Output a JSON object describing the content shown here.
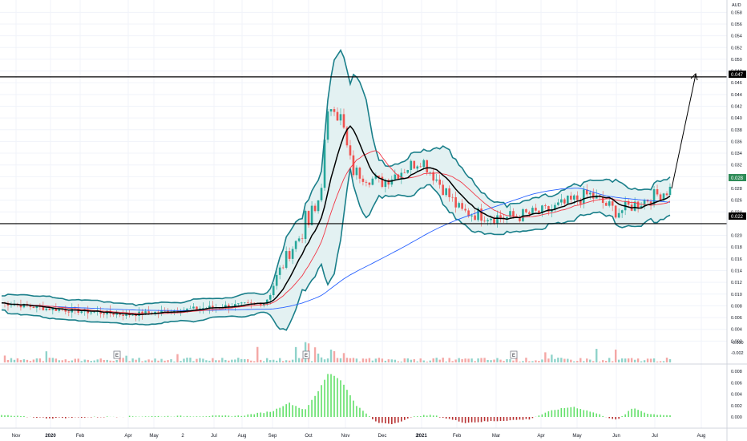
{
  "symbol": {
    "currency": "AUD"
  },
  "colors": {
    "up": "#26a69a",
    "down": "#ef5350",
    "upVol": "#8fd3ca",
    "downVol": "#f4a7a5",
    "bb": "#1a7f8a",
    "bbFill": "#e3f1f2",
    "ma": "#000000",
    "ema": "#f23645",
    "sma": "#2962ff",
    "histUp": "#63e06a",
    "histDown": "#b83232",
    "grid": "#f0f3fa",
    "axisText": "#131722",
    "boxBg": "#000000",
    "boxText": "#ffffff",
    "lastBox": "#2e8b57"
  },
  "price_axis": {
    "ticks": [
      "0.058",
      "0.056",
      "0.054",
      "0.052",
      "0.050",
      "0.048",
      "0.046",
      "0.044",
      "0.042",
      "0.040",
      "0.038",
      "0.036",
      "0.034",
      "0.032",
      "0.030",
      "0.028",
      "0.026",
      "0.024",
      "0.020",
      "0.018",
      "0.016",
      "0.014",
      "0.012",
      "0.010",
      "0.008",
      "0.006",
      "0.004",
      "0.002"
    ],
    "vol_ticks": [
      "-0.000",
      "-0.002"
    ],
    "osc_ticks": [
      "0.008",
      "0.006",
      "0.004",
      "0.002",
      "0.000"
    ]
  },
  "time_axis": {
    "labels": [
      "Nov",
      "2020",
      "Feb",
      "Apr",
      "May",
      "Jul",
      "Aug",
      "Sep",
      "Oct",
      "Nov",
      "Dec",
      "2021",
      "Feb",
      "Mar",
      "Apr",
      "May",
      "Jun",
      "Jul",
      "Aug"
    ],
    "extra_labels": [
      "2",
      "2"
    ]
  },
  "levels": [
    {
      "label": "0.047",
      "value": 0.047
    },
    {
      "label": "0.022",
      "value": 0.022
    }
  ],
  "last_price": {
    "label": "0.028",
    "value": 0.028
  },
  "earnings": [
    "E",
    "E",
    "E"
  ],
  "chart_data": {
    "type": "candlestick",
    "ylim": [
      0,
      0.059
    ],
    "oscillator_ylim": [
      -0.0016,
      0.0088
    ],
    "period": {
      "start": "2019-11",
      "end": "2021-08"
    },
    "resistance": 0.047,
    "support": 0.022,
    "projection": {
      "from": 0.028,
      "to": 0.047
    },
    "series": [
      {
        "name": "Close",
        "x": [
          "2019-11",
          "2020-01",
          "2020-04",
          "2020-07",
          "2020-08",
          "2020-09",
          "2020-10",
          "2020-10b",
          "2020-11",
          "2020-12",
          "2021-01",
          "2021-02",
          "2021-03",
          "2021-04",
          "2021-05",
          "2021-06",
          "2021-07"
        ],
        "values": [
          0.0085,
          0.0075,
          0.0065,
          0.0078,
          0.0085,
          0.017,
          0.024,
          0.045,
          0.031,
          0.029,
          0.033,
          0.024,
          0.023,
          0.024,
          0.027,
          0.024,
          0.028
        ]
      }
    ]
  }
}
